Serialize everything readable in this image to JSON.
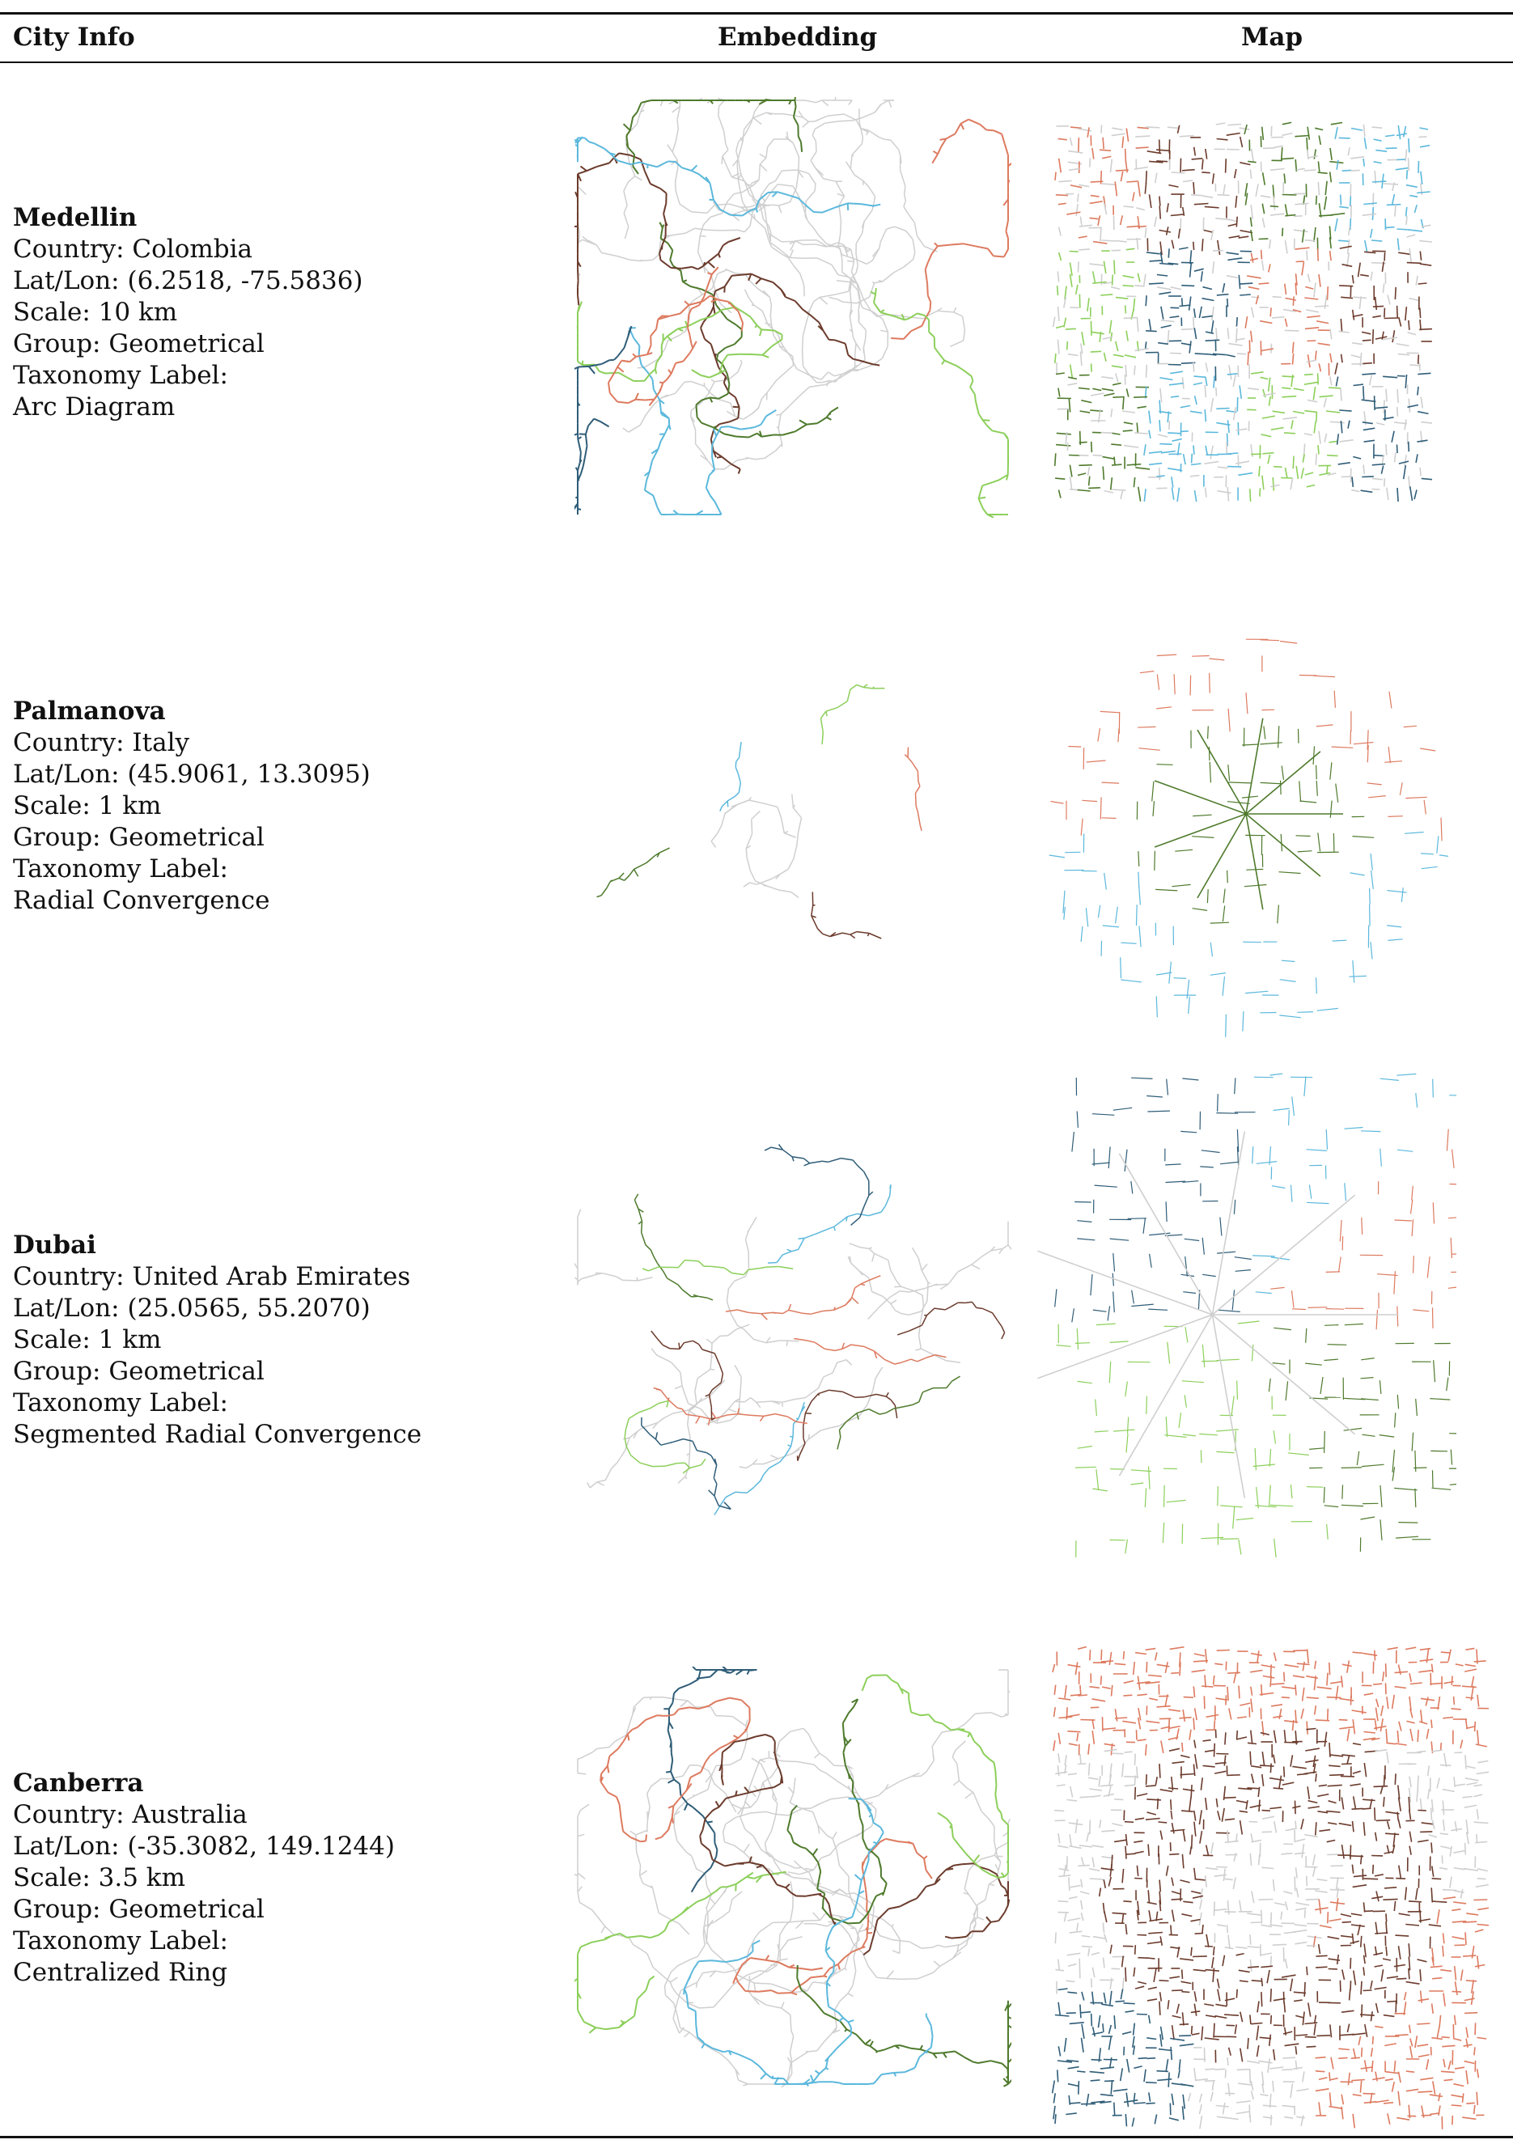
{
  "headers": {
    "city_info": "City Info",
    "embedding": "Embedding",
    "map": "Map"
  },
  "colors": {
    "salmon": "#dd7a5f",
    "brown": "#6b3b2c",
    "olive": "#4e7a2c",
    "sky": "#5bb8dc",
    "lime": "#8ccf5a",
    "navy": "#2f5d78",
    "grey": "#cfcfcf"
  },
  "rows": [
    {
      "name": "Medellin",
      "country": "Country: Colombia",
      "latlon": "Lat/Lon: (6.2518, -75.5836)",
      "scale": "Scale: 10 km",
      "group": "Group: Geometrical",
      "taxonomy_heading": "Taxonomy Label:",
      "taxonomy_value": "Arc Diagram"
    },
    {
      "name": "Palmanova",
      "country": "Country: Italy",
      "latlon": "Lat/Lon: (45.9061, 13.3095)",
      "scale": "Scale: 1 km",
      "group": "Group: Geometrical",
      "taxonomy_heading": "Taxonomy Label:",
      "taxonomy_value": "Radial Convergence"
    },
    {
      "name": "Dubai",
      "country": "Country: United Arab Emirates",
      "latlon": "Lat/Lon: (25.0565, 55.2070)",
      "scale": "Scale: 1 km",
      "group": "Group: Geometrical",
      "taxonomy_heading": "Taxonomy Label:",
      "taxonomy_value": "Segmented Radial Convergence"
    },
    {
      "name": "Canberra",
      "country": "Country: Australia",
      "latlon": "Lat/Lon: (-35.3082, 149.1244)",
      "scale": "Scale: 3.5 km",
      "group": "Group: Geometrical",
      "taxonomy_heading": "Taxonomy Label:",
      "taxonomy_value": "Centralized Ring"
    }
  ]
}
